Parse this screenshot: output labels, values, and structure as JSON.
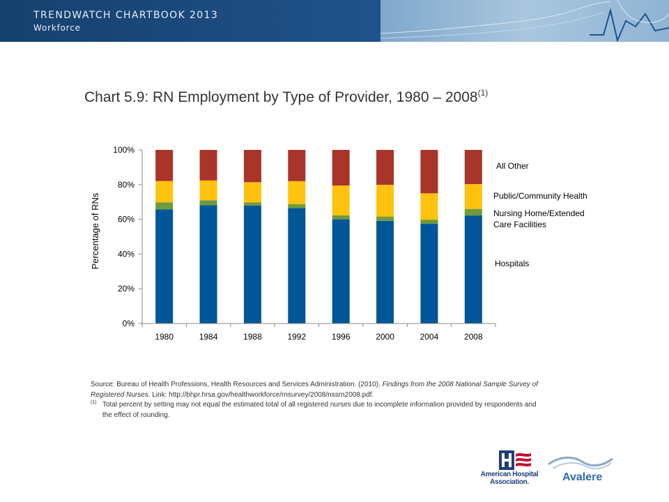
{
  "header": {
    "title": "TRENDWATCH CHARTBOOK 2013",
    "subtitle": "Workforce"
  },
  "chart_title": {
    "text": "Chart 5.9: RN Employment by Type of Provider, 1980 – 2008",
    "superscript": "(1)"
  },
  "chart_data": {
    "type": "bar",
    "stacked": true,
    "categories": [
      "1980",
      "1984",
      "1988",
      "1992",
      "1996",
      "2000",
      "2004",
      "2008"
    ],
    "series": [
      {
        "name": "Hospitals",
        "color": "#005696",
        "values": [
          65.7,
          68.1,
          67.9,
          66.5,
          60.0,
          59.1,
          57.4,
          62.2
        ]
      },
      {
        "name": "Nursing Home/Extended Care Facilities",
        "color": "#6f9a3d",
        "values": [
          4.1,
          2.9,
          1.9,
          2.2,
          2.3,
          2.5,
          2.4,
          3.8
        ]
      },
      {
        "name": "Public/Community Health",
        "color": "#ffc20e",
        "values": [
          12.3,
          11.4,
          11.6,
          13.3,
          17.2,
          18.3,
          15.2,
          14.3
        ]
      },
      {
        "name": "All Other",
        "color": "#a8342a",
        "values": [
          17.9,
          17.6,
          18.6,
          18.0,
          20.5,
          20.1,
          25.0,
          19.7
        ]
      }
    ],
    "legend_labels": [
      "All Other",
      "Public/Community Health",
      "Nursing Home/Extended Care Facilities",
      "Hospitals"
    ],
    "ylabel": "Percentage of RNs",
    "ylim": [
      0,
      100
    ],
    "yticks": [
      "0%",
      "20%",
      "40%",
      "60%",
      "80%",
      "100%"
    ],
    "grid": false,
    "legend_placement": "right"
  },
  "source": {
    "prefix": "Source: Bureau of Health Professions, Health Resources and Services Administration. (2010).",
    "italic": "Findings from the 2008 National Sample Survey of Registered Nurses",
    "suffix": ". Link: http://bhpr.hrsa.gov/healthworkforce/rnsurvey/2008/nssrn2008.pdf."
  },
  "note": {
    "mark": "(1)",
    "text": "Total percent by setting may not equal the estimated total of all registered nurses due to incomplete information provided by respondents and the effect of rounding."
  },
  "logos": {
    "aha": "American Hospital Association.",
    "avalere": "Avalere"
  }
}
